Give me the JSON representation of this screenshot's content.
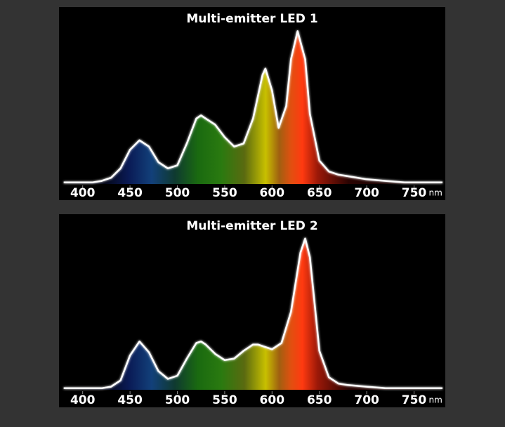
{
  "chart_data": [
    {
      "type": "area",
      "title": "Multi-emitter LED 1",
      "x": [
        380,
        390,
        400,
        410,
        420,
        430,
        440,
        450,
        460,
        470,
        480,
        490,
        500,
        510,
        520,
        525,
        530,
        540,
        550,
        560,
        570,
        580,
        590,
        593,
        600,
        607,
        615,
        620,
        627,
        635,
        640,
        650,
        660,
        670,
        680,
        700,
        720,
        740,
        760,
        780
      ],
      "values": [
        1,
        1,
        1,
        1,
        2,
        4,
        10,
        22,
        28,
        24,
        14,
        10,
        12,
        26,
        42,
        44,
        42,
        38,
        30,
        24,
        26,
        42,
        70,
        74,
        60,
        36,
        50,
        80,
        98,
        80,
        45,
        15,
        8,
        6,
        5,
        3,
        2,
        1,
        1,
        1
      ],
      "color": "#ffffff",
      "xlim": [
        375,
        783
      ],
      "xticks": [
        400,
        450,
        500,
        550,
        600,
        650,
        700,
        750
      ],
      "x_unit": "nm",
      "ylim": [
        0,
        100
      ]
    },
    {
      "type": "area",
      "title": "Multi-emitter LED 2",
      "x": [
        380,
        400,
        420,
        430,
        440,
        450,
        460,
        470,
        480,
        490,
        500,
        510,
        520,
        525,
        530,
        540,
        550,
        560,
        570,
        580,
        585,
        590,
        600,
        610,
        620,
        630,
        635,
        640,
        645,
        650,
        660,
        670,
        680,
        700,
        720,
        750,
        780
      ],
      "values": [
        1,
        1,
        1,
        2,
        6,
        22,
        31,
        24,
        12,
        7,
        9,
        20,
        30,
        31,
        29,
        23,
        19,
        20,
        25,
        29,
        29,
        28,
        26,
        30,
        50,
        88,
        97,
        85,
        55,
        25,
        8,
        4,
        3,
        2,
        1,
        1,
        1
      ],
      "color": "#ffffff",
      "xlim": [
        375,
        783
      ],
      "xticks": [
        400,
        450,
        500,
        550,
        600,
        650,
        700,
        750
      ],
      "x_unit": "nm",
      "ylim": [
        0,
        100
      ]
    }
  ]
}
